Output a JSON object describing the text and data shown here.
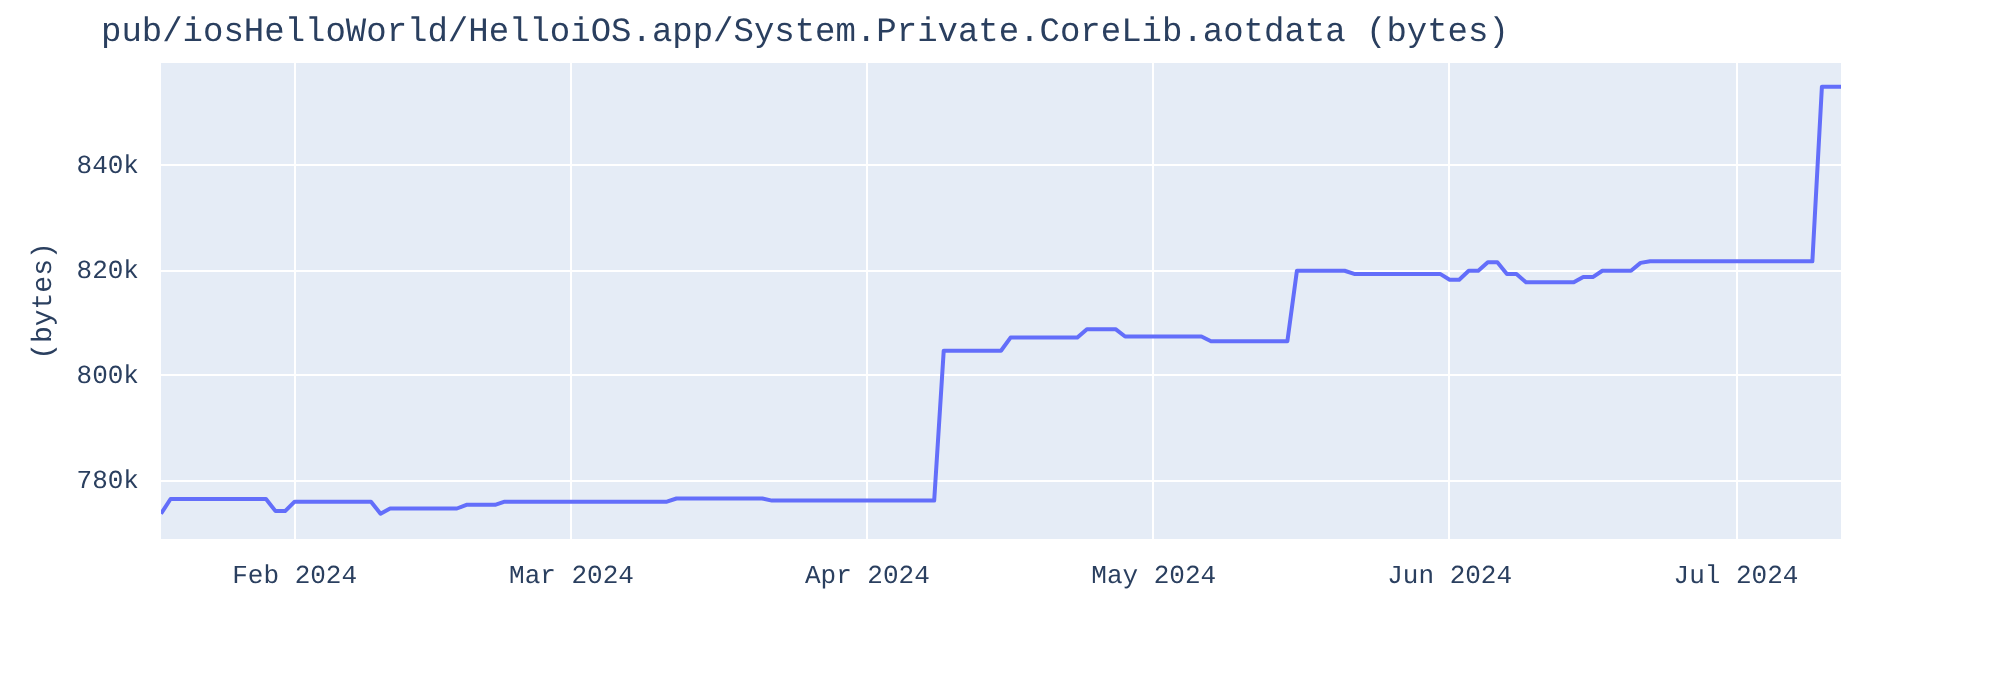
{
  "chart_data": {
    "type": "line",
    "title": "pub/iosHelloWorld/HelloiOS.app/System.Private.CoreLib.aotdata (bytes)",
    "ylabel": "(bytes)",
    "x": [
      "2024-01-18",
      "2024-01-19",
      "2024-01-29",
      "2024-01-30",
      "2024-01-31",
      "2024-02-01",
      "2024-02-09",
      "2024-02-10",
      "2024-02-11",
      "2024-02-18",
      "2024-02-19",
      "2024-02-22",
      "2024-02-23",
      "2024-03-11",
      "2024-03-12",
      "2024-03-21",
      "2024-03-22",
      "2024-04-08",
      "2024-04-09",
      "2024-04-15",
      "2024-04-16",
      "2024-04-23",
      "2024-04-24",
      "2024-04-27",
      "2024-04-28",
      "2024-05-06",
      "2024-05-07",
      "2024-05-15",
      "2024-05-16",
      "2024-05-21",
      "2024-05-22",
      "2024-05-31",
      "2024-06-01",
      "2024-06-02",
      "2024-06-03",
      "2024-06-04",
      "2024-06-05",
      "2024-06-06",
      "2024-06-07",
      "2024-06-08",
      "2024-06-09",
      "2024-06-14",
      "2024-06-15",
      "2024-06-16",
      "2024-06-17",
      "2024-06-20",
      "2024-06-21",
      "2024-06-22",
      "2024-07-09",
      "2024-07-10",
      "2024-07-12"
    ],
    "series": [
      {
        "color": "#636efa",
        "values": [
          773800,
          776600,
          776600,
          774300,
          774300,
          776100,
          776100,
          773800,
          774800,
          774800,
          775500,
          775500,
          776100,
          776100,
          776700,
          776700,
          776300,
          776300,
          804800,
          804800,
          807300,
          807300,
          808900,
          808900,
          807500,
          807500,
          806600,
          806600,
          820000,
          820000,
          819400,
          819400,
          818300,
          818300,
          820000,
          820000,
          821600,
          821600,
          819400,
          819400,
          817800,
          817800,
          818800,
          818800,
          820000,
          820000,
          821500,
          821800,
          821800,
          855000,
          855000
        ]
      }
    ],
    "xlim": [
      "2024-01-18",
      "2024-07-12"
    ],
    "ylim": [
      769000,
      859500
    ],
    "xticks": [
      {
        "value": "2024-02-01",
        "label": "Feb 2024"
      },
      {
        "value": "2024-03-01",
        "label": "Mar 2024"
      },
      {
        "value": "2024-04-01",
        "label": "Apr 2024"
      },
      {
        "value": "2024-05-01",
        "label": "May 2024"
      },
      {
        "value": "2024-06-01",
        "label": "Jun 2024"
      },
      {
        "value": "2024-07-01",
        "label": "Jul 2024"
      }
    ],
    "yticks": [
      {
        "value": 780000,
        "label": "780k"
      },
      {
        "value": 800000,
        "label": "800k"
      },
      {
        "value": 820000,
        "label": "820k"
      },
      {
        "value": 840000,
        "label": "840k"
      }
    ],
    "grid": true,
    "line_style": "solid"
  }
}
